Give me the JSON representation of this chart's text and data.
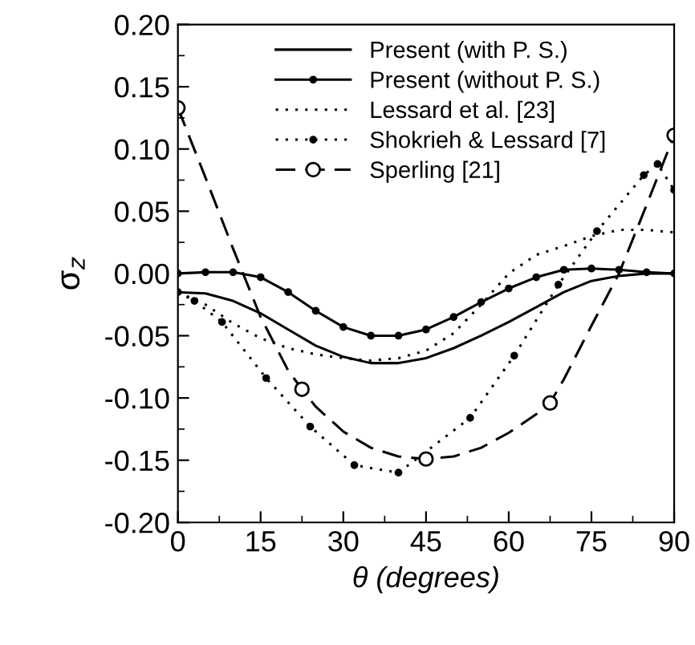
{
  "chart_data": {
    "type": "line",
    "xlabel": "θ (degrees)",
    "ylabel": "σ$_{z}$",
    "xlim": [
      0,
      90
    ],
    "xticks": [
      0,
      15,
      30,
      45,
      60,
      75,
      90
    ],
    "ylim": [
      -0.2,
      0.2
    ],
    "yticks": [
      {
        "value": -0.2,
        "label": "-0.20"
      },
      {
        "value": -0.15,
        "label": "-0.15"
      },
      {
        "value": -0.1,
        "label": "-0.10"
      },
      {
        "value": -0.05,
        "label": "-0.05"
      },
      {
        "value": 0,
        "label": "0.00"
      },
      {
        "value": 0.05,
        "label": "0.05"
      },
      {
        "value": 0.1,
        "label": "0.10"
      },
      {
        "value": 0.15,
        "label": "0.15"
      },
      {
        "value": 0.2,
        "label": "0.20"
      }
    ],
    "grid": false,
    "legend": "top",
    "series": [
      {
        "name": "Present (with P. S.)",
        "color": "#000000",
        "line_style": "solid",
        "marker": "none",
        "x": [
          0,
          5,
          10,
          15,
          20,
          25,
          30,
          35,
          40,
          45,
          50,
          55,
          60,
          65,
          70,
          75,
          80,
          85,
          90
        ],
        "values": [
          -0.015,
          -0.016,
          -0.022,
          -0.032,
          -0.045,
          -0.058,
          -0.067,
          -0.072,
          -0.072,
          -0.068,
          -0.06,
          -0.05,
          -0.039,
          -0.027,
          -0.015,
          -0.006,
          -0.002,
          0,
          0
        ]
      },
      {
        "name": "Present (without P. S.)",
        "color": "#000000",
        "line_style": "solid",
        "marker": "circle",
        "x": [
          0,
          5,
          10,
          15,
          20,
          25,
          30,
          35,
          40,
          45,
          50,
          55,
          60,
          65,
          70,
          75,
          80,
          85,
          90
        ],
        "values": [
          0,
          0.001,
          0.001,
          -0.003,
          -0.015,
          -0.03,
          -0.043,
          -0.05,
          -0.05,
          -0.045,
          -0.035,
          -0.023,
          -0.012,
          -0.003,
          0.003,
          0.004,
          0.003,
          0.001,
          0
        ]
      },
      {
        "name": "Lessard et al. [23]",
        "color": "#000000",
        "line_style": "dotted",
        "marker": "none",
        "x": [
          0,
          5,
          10,
          15,
          20,
          25,
          30,
          35,
          40,
          45,
          50,
          55,
          60,
          65,
          70,
          75,
          80,
          85,
          90
        ],
        "values": [
          -0.015,
          -0.025,
          -0.04,
          -0.052,
          -0.06,
          -0.065,
          -0.068,
          -0.07,
          -0.068,
          -0.062,
          -0.048,
          -0.025,
          0.0,
          0.015,
          0.022,
          0.03,
          0.035,
          0.035,
          0.033
        ]
      },
      {
        "name": "Shokrieh & Lessard [7]",
        "color": "#000000",
        "line_style": "dotted",
        "marker": "circle",
        "x": [
          0,
          3,
          8,
          16,
          24,
          32,
          40,
          53,
          61,
          69,
          76,
          84.5,
          87,
          90
        ],
        "values": [
          -0.015,
          -0.022,
          -0.039,
          -0.084,
          -0.123,
          -0.154,
          -0.16,
          -0.116,
          -0.066,
          -0.009,
          0.034,
          0.079,
          0.088,
          0.067
        ]
      },
      {
        "color": "#000000",
        "line_style": "dashed",
        "marker": "none",
        "x": [
          0,
          5,
          10,
          15,
          20,
          22.5,
          25,
          30,
          35,
          40,
          45,
          50,
          55,
          60,
          65,
          67.5,
          70,
          75,
          80,
          85,
          90
        ],
        "values": [
          0.133,
          0.077,
          0.02,
          -0.035,
          -0.078,
          -0.093,
          -0.107,
          -0.127,
          -0.14,
          -0.147,
          -0.149,
          -0.147,
          -0.14,
          -0.128,
          -0.113,
          -0.104,
          -0.085,
          -0.042,
          0.0,
          0.055,
          0.111
        ]
      },
      {
        "name": "Sperling [21]",
        "type": "scatter",
        "color": "#000000",
        "line_style": "dashed",
        "marker": "open circle",
        "x": [
          0,
          22.5,
          45,
          67.5,
          90
        ],
        "values": [
          0.133,
          -0.093,
          -0.149,
          -0.104,
          0.111
        ]
      }
    ]
  }
}
